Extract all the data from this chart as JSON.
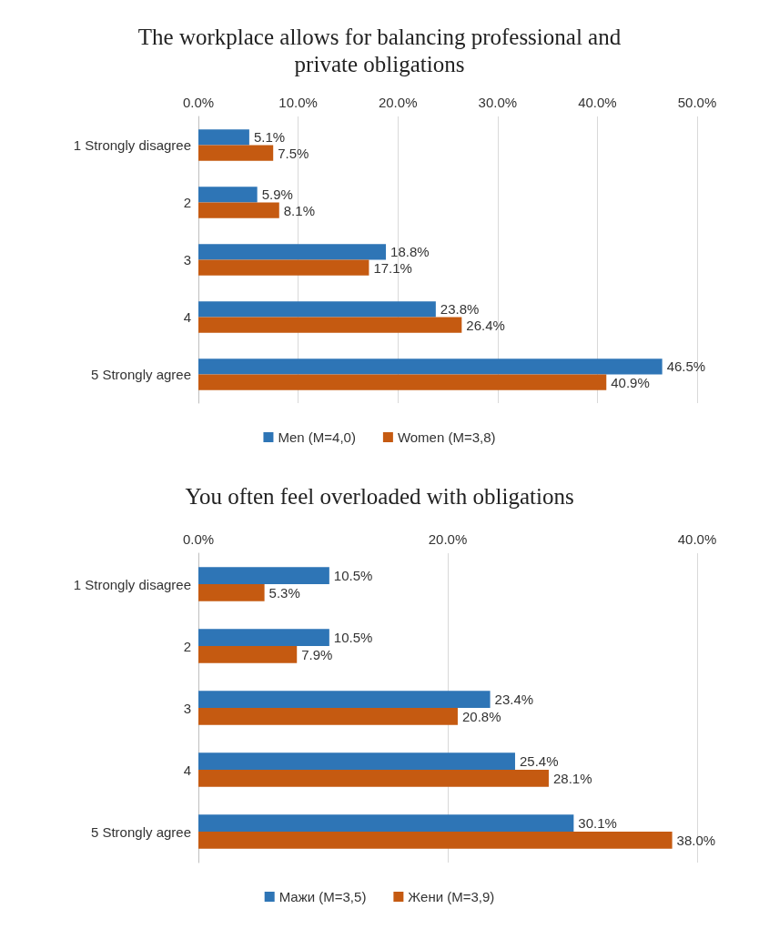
{
  "chart_data": [
    {
      "type": "bar",
      "orientation": "horizontal",
      "title": "The workplace allows for balancing professional and\nprivate obligations",
      "categories": [
        "1 Strongly disagree",
        "2",
        "3",
        "4",
        "5 Strongly agree"
      ],
      "xlim": [
        0,
        50
      ],
      "xticks": [
        {
          "value": 0,
          "label": "0.0%"
        },
        {
          "value": 10,
          "label": "10.0%"
        },
        {
          "value": 20,
          "label": "20.0%"
        },
        {
          "value": 30,
          "label": "30.0%"
        },
        {
          "value": 40,
          "label": "40.0%"
        },
        {
          "value": 50,
          "label": "50.0%"
        }
      ],
      "grid": "x",
      "legend": "bottom",
      "series": [
        {
          "name": "Men (M=4,0)",
          "color": "#2e75b6",
          "values": [
            5.1,
            5.9,
            18.8,
            23.8,
            46.5
          ],
          "value_labels": [
            "5.1%",
            "5.9%",
            "18.8%",
            "23.8%",
            "46.5%"
          ]
        },
        {
          "name": "Women (M=3,8)",
          "color": "#c55a11",
          "values": [
            7.5,
            8.1,
            17.1,
            26.4,
            40.9
          ],
          "value_labels": [
            "7.5%",
            "8.1%",
            "17.1%",
            "26.4%",
            "40.9%"
          ]
        }
      ]
    },
    {
      "type": "bar",
      "orientation": "horizontal",
      "title": "You often feel overloaded with obligations",
      "categories": [
        "1 Strongly disagree",
        "2",
        "3",
        "4",
        "5 Strongly agree"
      ],
      "xlim": [
        0,
        40
      ],
      "xticks": [
        {
          "value": 0,
          "label": "0.0%"
        },
        {
          "value": 20,
          "label": "20.0%"
        },
        {
          "value": 40,
          "label": "40.0%"
        }
      ],
      "grid": "x",
      "legend": "bottom",
      "series": [
        {
          "name": "Мажи (M=3,5)",
          "color": "#2e75b6",
          "values": [
            10.5,
            10.5,
            23.4,
            25.4,
            30.1
          ],
          "value_labels": [
            "10.5%",
            "10.5%",
            "23.4%",
            "25.4%",
            "30.1%"
          ]
        },
        {
          "name": "Жени (M=3,9)",
          "color": "#c55a11",
          "values": [
            5.3,
            7.9,
            20.8,
            28.1,
            38.0
          ],
          "value_labels": [
            "5.3%",
            "7.9%",
            "20.8%",
            "28.1%",
            "38.0%"
          ]
        }
      ]
    }
  ]
}
